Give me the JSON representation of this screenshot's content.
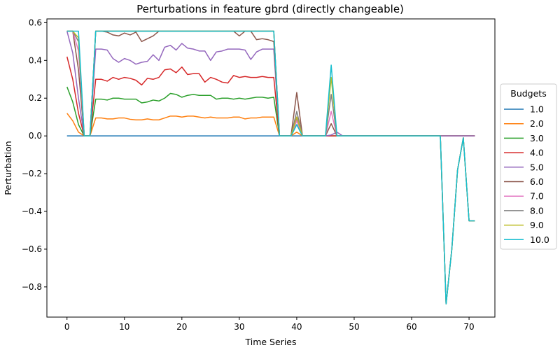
{
  "chart_data": {
    "type": "line",
    "title": "Perturbations in feature gbrd (directly changeable)",
    "xlabel": "Time Series",
    "ylabel": "Perturbation",
    "xlim": [
      -3.5,
      74.5
    ],
    "ylim": [
      -0.96,
      0.62
    ],
    "x_ticks": [
      0,
      10,
      20,
      30,
      40,
      50,
      60,
      70
    ],
    "y_ticks": [
      -0.8,
      -0.6,
      -0.4,
      -0.2,
      0.0,
      0.2,
      0.4,
      0.6
    ],
    "y_tick_labels": [
      "−0.8",
      "−0.6",
      "−0.4",
      "−0.2",
      "0.0",
      "0.2",
      "0.4",
      "0.6"
    ],
    "x": [
      0,
      1,
      2,
      3,
      4,
      5,
      6,
      7,
      8,
      9,
      10,
      11,
      12,
      13,
      14,
      15,
      16,
      17,
      18,
      19,
      20,
      21,
      22,
      23,
      24,
      25,
      26,
      27,
      28,
      29,
      30,
      31,
      32,
      33,
      34,
      35,
      36,
      37,
      38,
      39,
      40,
      41,
      42,
      43,
      44,
      45,
      46,
      47,
      48,
      49,
      50,
      51,
      52,
      53,
      54,
      55,
      56,
      57,
      58,
      59,
      60,
      61,
      62,
      63,
      64,
      65,
      66,
      67,
      68,
      69,
      70,
      71
    ],
    "legend": {
      "title": "Budgets",
      "position": "center-right"
    },
    "grid": false,
    "series": [
      {
        "name": "1.0",
        "color": "#1f77b4",
        "values": [
          0,
          0,
          0,
          0,
          0,
          0,
          0,
          0,
          0,
          0,
          0,
          0,
          0,
          0,
          0,
          0,
          0,
          0,
          0,
          0,
          0,
          0,
          0,
          0,
          0,
          0,
          0,
          0,
          0,
          0,
          0,
          0,
          0,
          0,
          0,
          0,
          0,
          0,
          0,
          0,
          0,
          0,
          0,
          0,
          0,
          0,
          0,
          0,
          0,
          0,
          0,
          0,
          0,
          0,
          0,
          0,
          0,
          0,
          0,
          0,
          0,
          0,
          0,
          0,
          0,
          0,
          0,
          0,
          0,
          0,
          0,
          0
        ]
      },
      {
        "name": "2.0",
        "color": "#ff7f0e",
        "values": [
          0.12,
          0.08,
          0.02,
          0,
          0,
          0.095,
          0.095,
          0.09,
          0.09,
          0.095,
          0.095,
          0.088,
          0.085,
          0.085,
          0.09,
          0.085,
          0.085,
          0.095,
          0.105,
          0.105,
          0.1,
          0.105,
          0.105,
          0.1,
          0.095,
          0.1,
          0.095,
          0.095,
          0.095,
          0.1,
          0.1,
          0.09,
          0.095,
          0.095,
          0.1,
          0.1,
          0.1,
          0,
          0,
          0,
          0.02,
          0,
          0,
          0,
          0,
          0,
          0,
          0,
          0,
          0,
          0,
          0,
          0,
          0,
          0,
          0,
          0,
          0,
          0,
          0,
          0,
          0,
          0,
          0,
          0,
          0,
          0,
          0,
          0,
          0,
          0,
          0
        ]
      },
      {
        "name": "3.0",
        "color": "#2ca02c",
        "values": [
          0.26,
          0.18,
          0.06,
          0,
          0,
          0.195,
          0.195,
          0.19,
          0.2,
          0.2,
          0.195,
          0.195,
          0.195,
          0.175,
          0.18,
          0.19,
          0.185,
          0.2,
          0.225,
          0.22,
          0.205,
          0.215,
          0.22,
          0.215,
          0.215,
          0.215,
          0.195,
          0.2,
          0.2,
          0.195,
          0.2,
          0.195,
          0.2,
          0.205,
          0.205,
          0.2,
          0.205,
          0,
          0,
          0,
          0.06,
          0,
          0,
          0,
          0,
          0,
          0,
          0,
          0,
          0,
          0,
          0,
          0,
          0,
          0,
          0,
          0,
          0,
          0,
          0,
          0,
          0,
          0,
          0,
          0,
          0,
          0,
          0,
          0,
          0,
          0,
          0
        ]
      },
      {
        "name": "4.0",
        "color": "#d62728",
        "values": [
          0.42,
          0.3,
          0.12,
          0,
          0,
          0.3,
          0.3,
          0.29,
          0.31,
          0.3,
          0.31,
          0.305,
          0.295,
          0.27,
          0.305,
          0.3,
          0.31,
          0.35,
          0.355,
          0.335,
          0.365,
          0.325,
          0.33,
          0.33,
          0.285,
          0.31,
          0.3,
          0.285,
          0.28,
          0.32,
          0.31,
          0.315,
          0.31,
          0.31,
          0.315,
          0.31,
          0.31,
          0,
          0,
          0,
          0.1,
          0,
          0,
          0,
          0,
          0,
          0,
          0,
          0,
          0,
          0,
          0,
          0,
          0,
          0,
          0,
          0,
          0,
          0,
          0,
          0,
          0,
          0,
          0,
          0,
          0,
          0,
          0,
          0,
          0,
          0,
          0
        ]
      },
      {
        "name": "5.0",
        "color": "#9467bd",
        "values": [
          0.555,
          0.44,
          0.2,
          0,
          0,
          0.46,
          0.46,
          0.455,
          0.41,
          0.39,
          0.41,
          0.4,
          0.38,
          0.39,
          0.395,
          0.43,
          0.4,
          0.47,
          0.48,
          0.455,
          0.49,
          0.465,
          0.46,
          0.45,
          0.45,
          0.4,
          0.445,
          0.45,
          0.46,
          0.46,
          0.46,
          0.455,
          0.405,
          0.445,
          0.46,
          0.46,
          0.46,
          0,
          0,
          0,
          0.09,
          0,
          0,
          0,
          0,
          0,
          0.005,
          0.02,
          0,
          0,
          0,
          0,
          0,
          0,
          0,
          0,
          0,
          0,
          0,
          0,
          0,
          0,
          0,
          0,
          0,
          0,
          0,
          0,
          0,
          0,
          0,
          0
        ]
      },
      {
        "name": "6.0",
        "color": "#8c564b",
        "values": [
          0.555,
          0.555,
          0.35,
          0,
          0,
          0.555,
          0.555,
          0.55,
          0.535,
          0.53,
          0.545,
          0.535,
          0.55,
          0.5,
          0.515,
          0.53,
          0.555,
          0.555,
          0.555,
          0.555,
          0.555,
          0.555,
          0.555,
          0.555,
          0.555,
          0.555,
          0.555,
          0.555,
          0.555,
          0.555,
          0.53,
          0.555,
          0.555,
          0.51,
          0.515,
          0.51,
          0.5,
          0,
          0,
          0,
          0.23,
          0,
          0,
          0,
          0,
          0,
          0.065,
          0,
          0,
          0,
          0,
          0,
          0,
          0,
          0,
          0,
          0,
          0,
          0,
          0,
          0,
          0,
          0,
          0,
          0,
          0,
          -0.89,
          -0.6,
          -0.18,
          -0.01,
          -0.45,
          -0.45
        ]
      },
      {
        "name": "7.0",
        "color": "#e377c2",
        "values": [
          0.555,
          0.555,
          0.45,
          0,
          0,
          0.555,
          0.555,
          0.555,
          0.555,
          0.555,
          0.555,
          0.555,
          0.555,
          0.555,
          0.555,
          0.555,
          0.555,
          0.555,
          0.555,
          0.555,
          0.555,
          0.555,
          0.555,
          0.555,
          0.555,
          0.555,
          0.555,
          0.555,
          0.555,
          0.555,
          0.555,
          0.555,
          0.555,
          0.555,
          0.555,
          0.555,
          0.555,
          0,
          0,
          0,
          0.08,
          0,
          0,
          0,
          0,
          0,
          0.13,
          0,
          0,
          0,
          0,
          0,
          0,
          0,
          0,
          0,
          0,
          0,
          0,
          0,
          0,
          0,
          0,
          0,
          0,
          0,
          -0.89,
          -0.6,
          -0.18,
          -0.01,
          -0.45,
          -0.45
        ]
      },
      {
        "name": "8.0",
        "color": "#7f7f7f",
        "values": [
          0.555,
          0.555,
          0.5,
          0,
          0,
          0.555,
          0.555,
          0.555,
          0.555,
          0.555,
          0.555,
          0.555,
          0.555,
          0.555,
          0.555,
          0.555,
          0.555,
          0.555,
          0.555,
          0.555,
          0.555,
          0.555,
          0.555,
          0.555,
          0.555,
          0.555,
          0.555,
          0.555,
          0.555,
          0.555,
          0.555,
          0.555,
          0.555,
          0.555,
          0.555,
          0.555,
          0.555,
          0,
          0,
          0,
          0.13,
          0,
          0,
          0,
          0,
          0,
          0.22,
          0,
          0,
          0,
          0,
          0,
          0,
          0,
          0,
          0,
          0,
          0,
          0,
          0,
          0,
          0,
          0,
          0,
          0,
          0,
          -0.89,
          -0.6,
          -0.18,
          -0.01,
          -0.45,
          -0.45
        ]
      },
      {
        "name": "9.0",
        "color": "#bcbd22",
        "values": [
          0.555,
          0.555,
          0.52,
          0,
          0,
          0.555,
          0.555,
          0.555,
          0.555,
          0.555,
          0.555,
          0.555,
          0.555,
          0.555,
          0.555,
          0.555,
          0.555,
          0.555,
          0.555,
          0.555,
          0.555,
          0.555,
          0.555,
          0.555,
          0.555,
          0.555,
          0.555,
          0.555,
          0.555,
          0.555,
          0.555,
          0.555,
          0.555,
          0.555,
          0.555,
          0.555,
          0.555,
          0,
          0,
          0,
          0.1,
          0,
          0,
          0,
          0,
          0,
          0.31,
          0,
          0,
          0,
          0,
          0,
          0,
          0,
          0,
          0,
          0,
          0,
          0,
          0,
          0,
          0,
          0,
          0,
          0,
          0,
          -0.89,
          -0.6,
          -0.18,
          -0.01,
          -0.45,
          -0.45
        ]
      },
      {
        "name": "10.0",
        "color": "#17becf",
        "values": [
          0.555,
          0.555,
          0.555,
          0,
          0,
          0.555,
          0.555,
          0.555,
          0.555,
          0.555,
          0.555,
          0.555,
          0.555,
          0.555,
          0.555,
          0.555,
          0.555,
          0.555,
          0.555,
          0.555,
          0.555,
          0.555,
          0.555,
          0.555,
          0.555,
          0.555,
          0.555,
          0.555,
          0.555,
          0.555,
          0.555,
          0.555,
          0.555,
          0.555,
          0.555,
          0.555,
          0.555,
          0,
          0,
          0,
          0.06,
          0,
          0,
          0,
          0,
          0,
          0.375,
          0,
          0,
          0,
          0,
          0,
          0,
          0,
          0,
          0,
          0,
          0,
          0,
          0,
          0,
          0,
          0,
          0,
          0,
          0,
          -0.89,
          -0.6,
          -0.18,
          -0.01,
          -0.45,
          -0.45
        ]
      }
    ]
  }
}
